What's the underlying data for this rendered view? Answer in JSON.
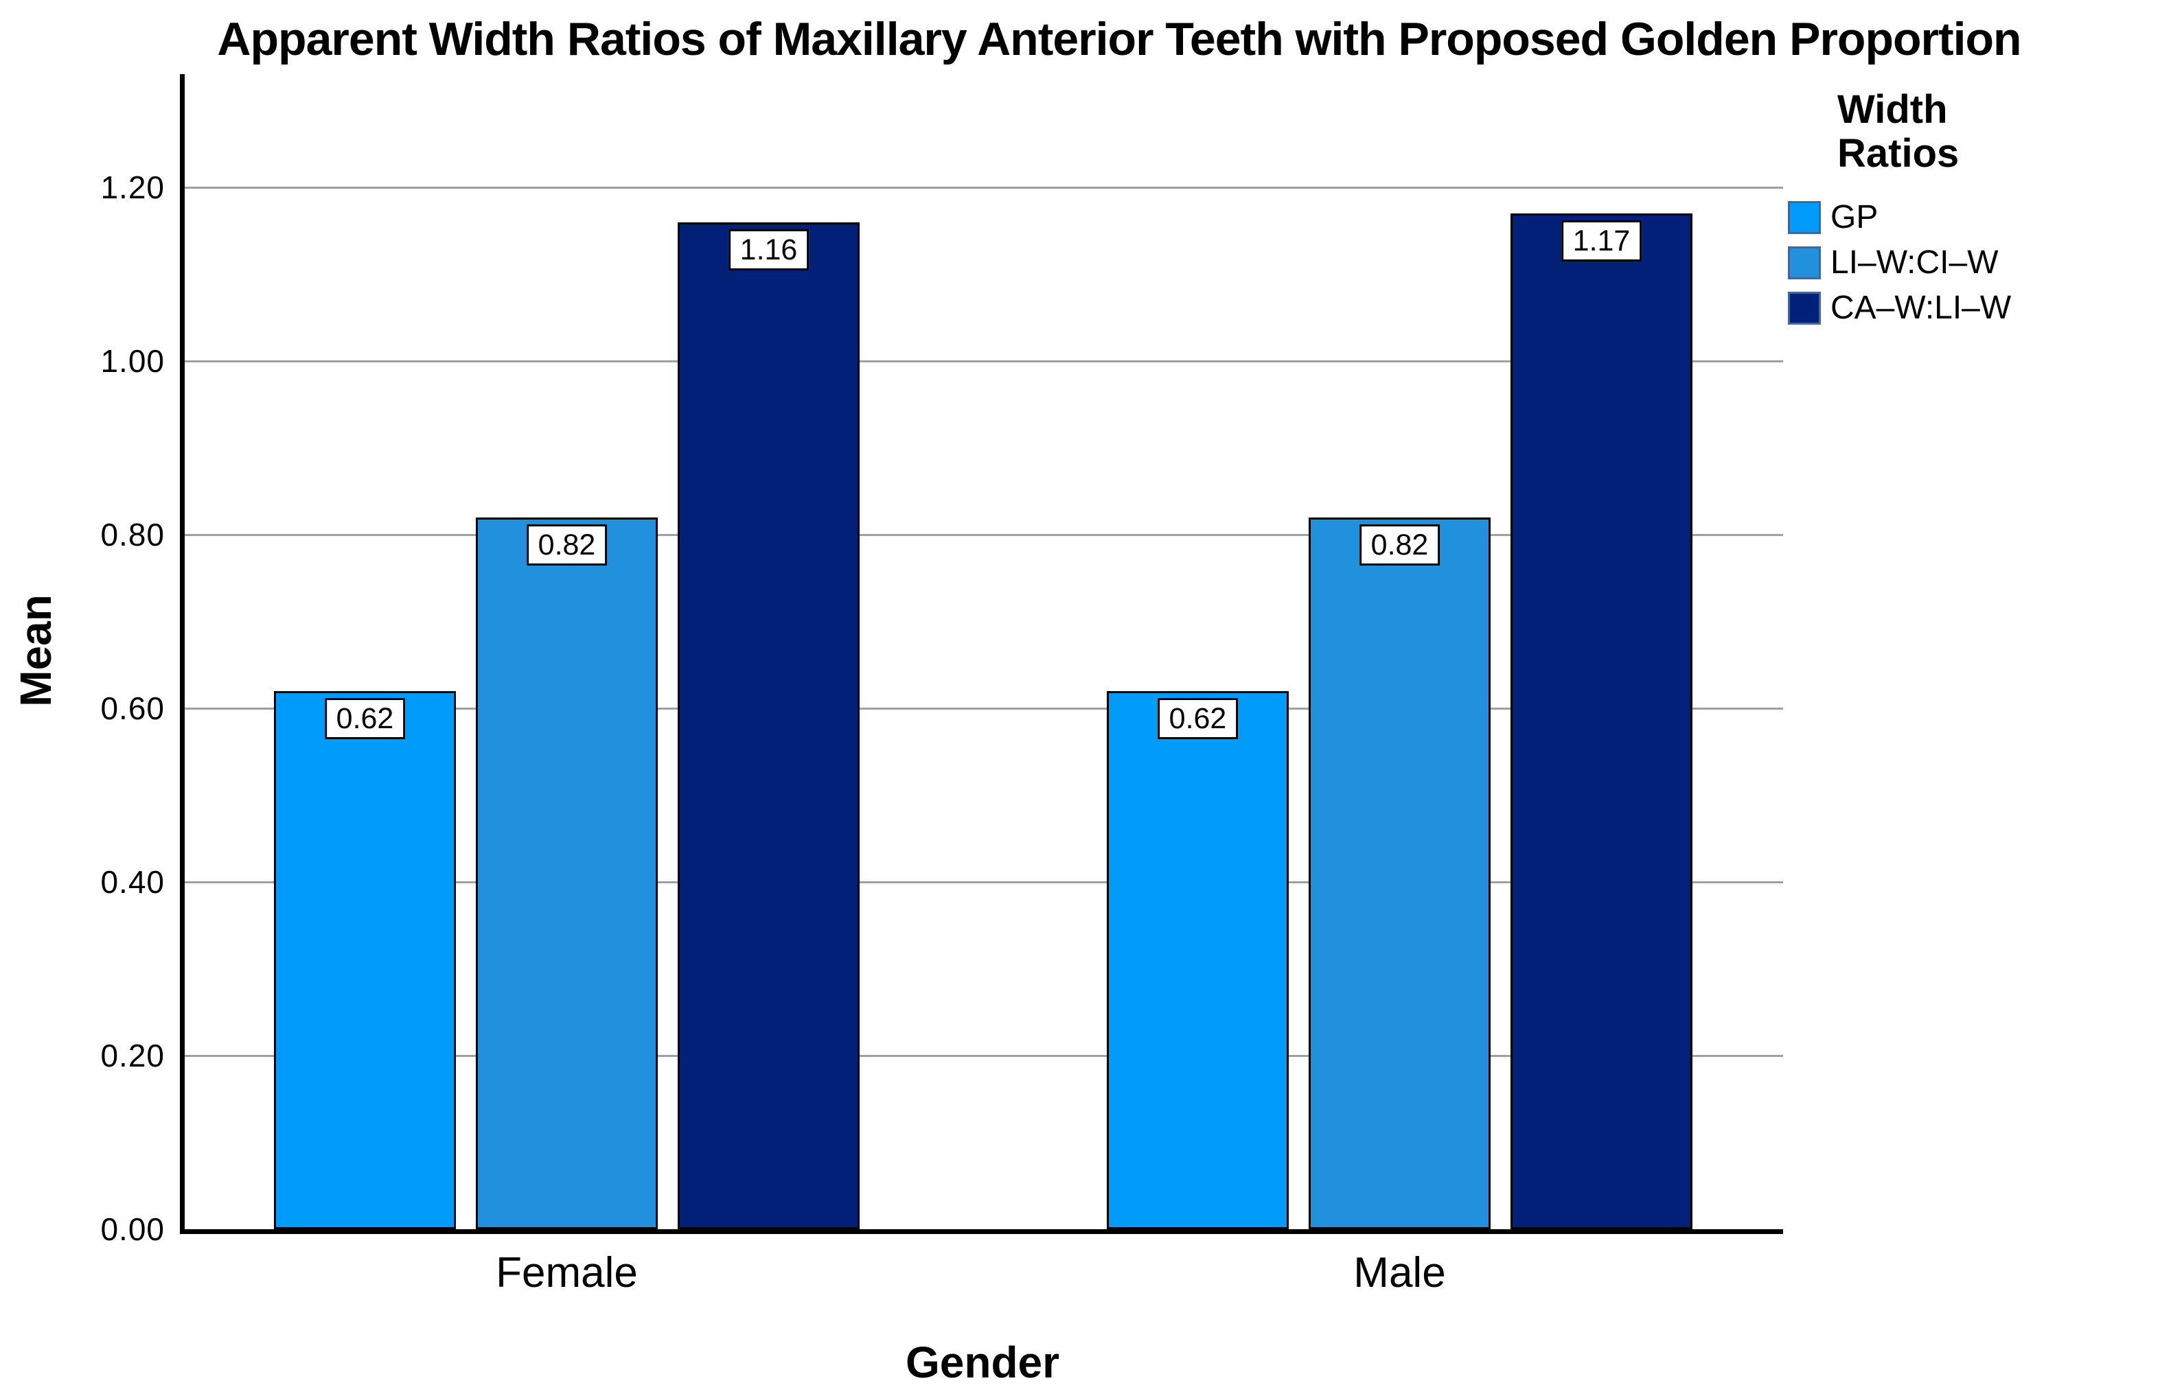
{
  "chart_data": {
    "type": "bar",
    "title": "Apparent Width Ratios of Maxillary Anterior Teeth with Proposed Golden Proportion",
    "categories": [
      "Female",
      "Male"
    ],
    "series": [
      {
        "name": "GP",
        "color": "#019cfa",
        "values": [
          0.62,
          0.62
        ],
        "value_labels": [
          "0.62",
          "0.62"
        ]
      },
      {
        "name": "LI–W:CI–W",
        "color": "#2191de",
        "values": [
          0.82,
          0.82
        ],
        "value_labels": [
          "0.82",
          "0.82"
        ]
      },
      {
        "name": "CA–W:LI–W",
        "color": "#022078",
        "values": [
          1.16,
          1.17
        ],
        "value_labels": [
          "1.16",
          "1.17"
        ]
      }
    ],
    "xlabel": "Gender",
    "ylabel": "Mean",
    "ylim": [
      0,
      1.32
    ],
    "yticks": [
      0,
      0.2,
      0.4,
      0.6,
      0.8,
      1.0,
      1.2
    ],
    "ytick_labels": [
      "0.00",
      "0.20",
      "0.40",
      "0.60",
      "0.80",
      "1.00",
      "1.20"
    ],
    "grid": true,
    "legend_position": "right",
    "legend_title": "Width Ratios",
    "bar_value_labels_shown": true
  }
}
